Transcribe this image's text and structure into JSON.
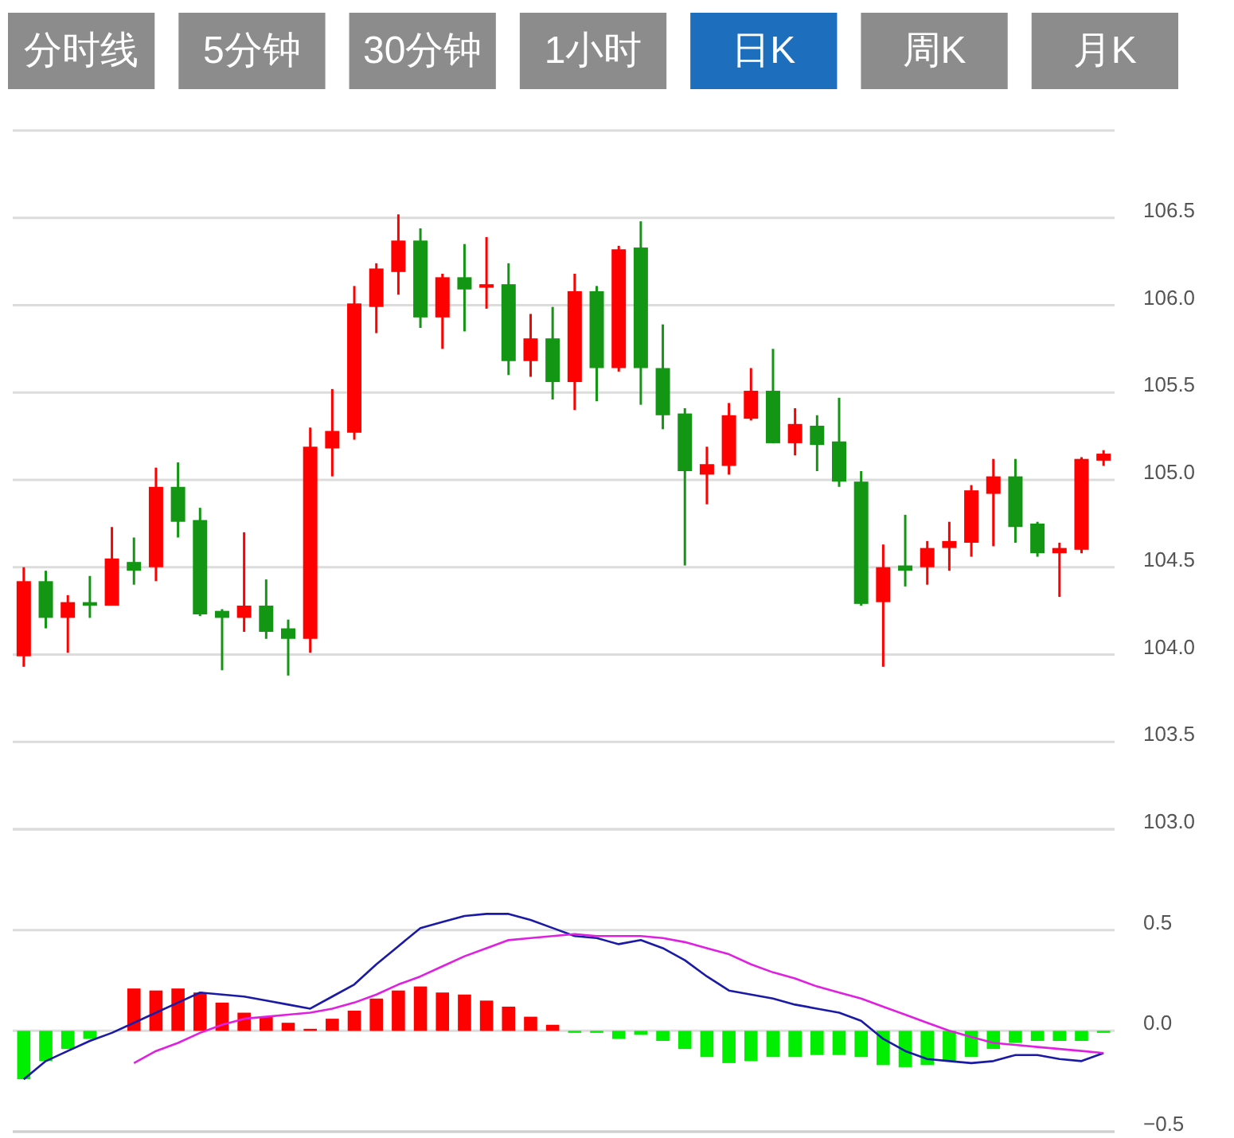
{
  "chart_data": [
    {
      "type": "other",
      "categories": [
        "分时线",
        "5分钟",
        "30分钟",
        "1小时",
        "日K",
        "周K",
        "月K"
      ],
      "colors": [
        "#8c8c8c",
        "#8c8c8c",
        "#8c8c8c",
        "#8c8c8c",
        "#1e6ebe",
        "#8c8c8c",
        "#8c8c8c"
      ]
    },
    {
      "type": "candlestick",
      "categories": [
        null,
        null,
        null,
        null,
        null,
        null,
        null,
        null,
        null,
        null,
        null,
        null,
        null,
        null,
        null,
        null,
        null,
        null,
        null,
        null,
        null,
        null,
        null,
        null,
        null,
        null,
        null,
        null,
        null,
        null,
        null,
        null,
        null,
        null,
        null,
        null,
        null,
        null,
        null,
        null,
        null,
        null,
        null,
        null,
        null,
        null,
        null,
        null,
        null,
        null
      ],
      "ohlc": [
        [
          103.99,
          104.5,
          103.93,
          104.42
        ],
        [
          104.42,
          104.48,
          104.15,
          104.21
        ],
        [
          104.21,
          104.34,
          104.01,
          104.3
        ],
        [
          104.3,
          104.45,
          104.21,
          104.28
        ],
        [
          104.28,
          104.73,
          104.28,
          104.55
        ],
        [
          104.53,
          104.67,
          104.4,
          104.48
        ],
        [
          104.5,
          105.07,
          104.42,
          104.96
        ],
        [
          104.96,
          105.1,
          104.67,
          104.76
        ],
        [
          104.77,
          104.84,
          104.22,
          104.23
        ],
        [
          104.25,
          104.26,
          103.91,
          104.21
        ],
        [
          104.21,
          104.7,
          104.13,
          104.28
        ],
        [
          104.28,
          104.43,
          104.09,
          104.13
        ],
        [
          104.15,
          104.2,
          103.88,
          104.09
        ],
        [
          104.09,
          105.3,
          104.01,
          105.19
        ],
        [
          105.18,
          105.52,
          105.02,
          105.28
        ],
        [
          105.27,
          106.11,
          105.23,
          106.01
        ],
        [
          105.99,
          106.24,
          105.84,
          106.21
        ],
        [
          106.19,
          106.52,
          106.06,
          106.37
        ],
        [
          106.37,
          106.44,
          105.87,
          105.93
        ],
        [
          105.93,
          106.18,
          105.75,
          106.16
        ],
        [
          106.16,
          106.35,
          105.85,
          106.09
        ],
        [
          106.1,
          106.39,
          105.98,
          106.12
        ],
        [
          106.12,
          106.24,
          105.6,
          105.68
        ],
        [
          105.68,
          105.95,
          105.59,
          105.81
        ],
        [
          105.81,
          105.99,
          105.46,
          105.56
        ],
        [
          105.56,
          106.18,
          105.4,
          106.08
        ],
        [
          106.08,
          106.11,
          105.45,
          105.64
        ],
        [
          105.64,
          106.34,
          105.62,
          106.32
        ],
        [
          106.33,
          106.48,
          105.43,
          105.64
        ],
        [
          105.64,
          105.89,
          105.29,
          105.37
        ],
        [
          105.38,
          105.41,
          104.51,
          105.05
        ],
        [
          105.03,
          105.19,
          104.86,
          105.09
        ],
        [
          105.08,
          105.44,
          105.03,
          105.37
        ],
        [
          105.35,
          105.64,
          105.34,
          105.51
        ],
        [
          105.51,
          105.75,
          105.21,
          105.21
        ],
        [
          105.21,
          105.41,
          105.14,
          105.32
        ],
        [
          105.31,
          105.37,
          105.05,
          105.2
        ],
        [
          105.22,
          105.47,
          104.96,
          104.99
        ],
        [
          104.99,
          105.05,
          104.28,
          104.29
        ],
        [
          104.3,
          104.63,
          103.93,
          104.5
        ],
        [
          104.51,
          104.8,
          104.39,
          104.48
        ],
        [
          104.5,
          104.65,
          104.4,
          104.61
        ],
        [
          104.61,
          104.76,
          104.48,
          104.65
        ],
        [
          104.64,
          104.97,
          104.56,
          104.94
        ],
        [
          104.92,
          105.12,
          104.62,
          105.02
        ],
        [
          105.02,
          105.12,
          104.64,
          104.73
        ],
        [
          104.75,
          104.76,
          104.56,
          104.58
        ],
        [
          104.58,
          104.64,
          104.33,
          104.61
        ],
        [
          104.6,
          105.13,
          104.58,
          105.12
        ],
        [
          105.11,
          105.17,
          105.08,
          105.15
        ]
      ],
      "colors": [
        "#ff0000",
        "#139613",
        "#ff0000",
        "#139613",
        "#ff0000",
        "#139613",
        "#ff0000",
        "#139613",
        "#139613",
        "#139613",
        "#ff0000",
        "#139613",
        "#139613",
        "#ff0000",
        "#ff0000",
        "#ff0000",
        "#ff0000",
        "#ff0000",
        "#139613",
        "#ff0000",
        "#139613",
        "#ff0000",
        "#139613",
        "#ff0000",
        "#139613",
        "#ff0000",
        "#139613",
        "#ff0000",
        "#139613",
        "#139613",
        "#139613",
        "#ff0000",
        "#ff0000",
        "#ff0000",
        "#139613",
        "#ff0000",
        "#139613",
        "#139613",
        "#139613",
        "#ff0000",
        "#139613",
        "#ff0000",
        "#ff0000",
        "#ff0000",
        "#ff0000",
        "#139613",
        "#139613",
        "#ff0000",
        "#ff0000",
        "#ff0000"
      ],
      "ylim": [
        103,
        107
      ],
      "yticks": [
        {
          "value": 103,
          "label": "103.0"
        },
        103.5,
        {
          "value": 104,
          "label": "104.0"
        },
        104.5,
        {
          "value": 105,
          "label": "105.0"
        },
        105.5,
        {
          "value": 106,
          "label": "106.0"
        },
        106.5,
        {
          "value": 107,
          "label": null
        }
      ],
      "grid": "y"
    },
    {
      "type": "bar",
      "categories": [
        null,
        null,
        null,
        null,
        null,
        null,
        null,
        null,
        null,
        null,
        null,
        null,
        null,
        null,
        null,
        null,
        null,
        null,
        null,
        null,
        null,
        null,
        null,
        null,
        null,
        null,
        null,
        null,
        null,
        null,
        null,
        null,
        null,
        null,
        null,
        null,
        null,
        null,
        null,
        null,
        null,
        null,
        null,
        null,
        null,
        null,
        null,
        null,
        null,
        null
      ],
      "series": [
        {
          "type": "bar",
          "values": [
            -0.24,
            -0.15,
            -0.09,
            -0.04,
            0,
            0.21,
            0.2,
            0.21,
            0.19,
            0.14,
            0.09,
            0.07,
            0.04,
            0.01,
            0.06,
            0.1,
            0.16,
            0.2,
            0.22,
            0.19,
            0.18,
            0.15,
            0.12,
            0.07,
            0.03,
            -0.01,
            -0.01,
            -0.04,
            -0.02,
            -0.05,
            -0.09,
            -0.13,
            -0.16,
            -0.15,
            -0.13,
            -0.13,
            -0.12,
            -0.12,
            -0.13,
            -0.17,
            -0.18,
            -0.17,
            -0.15,
            -0.13,
            -0.09,
            -0.06,
            -0.05,
            -0.05,
            -0.05,
            -0.01
          ],
          "colors": [
            "#00ee00",
            "#00ee00",
            "#00ee00",
            "#00ee00",
            "#ff0000",
            "#ff0000",
            "#ff0000",
            "#ff0000",
            "#ff0000",
            "#ff0000",
            "#ff0000",
            "#ff0000",
            "#ff0000",
            "#ff0000",
            "#ff0000",
            "#ff0000",
            "#ff0000",
            "#ff0000",
            "#ff0000",
            "#ff0000",
            "#ff0000",
            "#ff0000",
            "#ff0000",
            "#ff0000",
            "#ff0000",
            "#00ee00",
            "#00ee00",
            "#00ee00",
            "#00ee00",
            "#00ee00",
            "#00ee00",
            "#00ee00",
            "#00ee00",
            "#00ee00",
            "#00ee00",
            "#00ee00",
            "#00ee00",
            "#00ee00",
            "#00ee00",
            "#00ee00",
            "#00ee00",
            "#00ee00",
            "#00ee00",
            "#00ee00",
            "#00ee00",
            "#00ee00",
            "#00ee00",
            "#00ee00",
            "#00ee00",
            "#00ee00"
          ]
        },
        {
          "type": "line",
          "color": "#1a1aa6",
          "values": [
            -0.24,
            -0.15,
            -0.1,
            -0.05,
            -0.01,
            0.04,
            0.09,
            0.14,
            0.19,
            0.18,
            0.17,
            0.15,
            0.13,
            0.11,
            0.17,
            0.23,
            0.33,
            0.42,
            0.51,
            0.54,
            0.57,
            0.58,
            0.58,
            0.55,
            0.51,
            0.47,
            0.46,
            0.43,
            0.45,
            0.41,
            0.35,
            0.27,
            0.2,
            0.18,
            0.16,
            0.13,
            0.11,
            0.09,
            0.05,
            -0.04,
            -0.1,
            -0.14,
            -0.15,
            -0.16,
            -0.15,
            -0.12,
            -0.12,
            -0.14,
            -0.15,
            -0.11
          ]
        },
        {
          "type": "line",
          "color": "#e020e0",
          "values": [
            null,
            null,
            null,
            null,
            null,
            -0.16,
            -0.1,
            -0.06,
            -0.01,
            0.03,
            0.06,
            0.07,
            0.08,
            0.09,
            0.11,
            0.14,
            0.18,
            0.23,
            0.27,
            0.32,
            0.37,
            0.41,
            0.45,
            0.46,
            0.47,
            0.48,
            0.47,
            0.47,
            0.47,
            0.46,
            0.44,
            0.41,
            0.38,
            0.33,
            0.29,
            0.26,
            0.22,
            0.19,
            0.16,
            0.12,
            0.08,
            0.04,
            0.0,
            -0.03,
            -0.06,
            -0.07,
            -0.08,
            -0.09,
            -0.1,
            -0.11
          ]
        }
      ],
      "ylim": [
        -0.5,
        1.0
      ],
      "yticks": [
        {
          "value": -0.5,
          "label": "−0.5"
        },
        {
          "value": 0,
          "label": "0.0"
        },
        0.5
      ],
      "grid": "y"
    }
  ]
}
